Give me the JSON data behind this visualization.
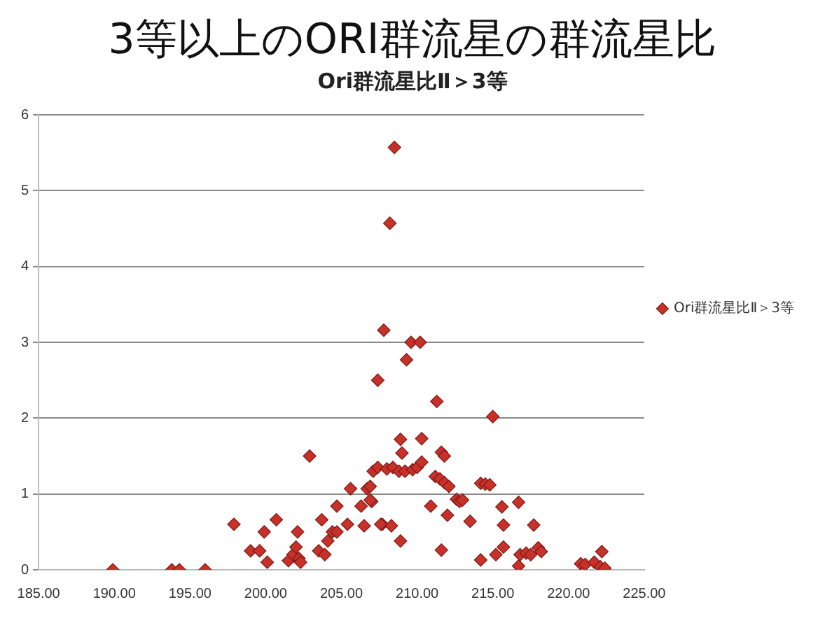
{
  "chart_data": {
    "type": "scatter",
    "title": "3等以上のORI群流星の群流星比",
    "subtitle": "Ori群流星比Ⅱ＞3等",
    "series": [
      {
        "name": "Ori群流星比Ⅱ＞3等",
        "color": "#c8302a",
        "x": [
          189.9,
          193.8,
          194.3,
          196.0,
          197.9,
          199.0,
          199.6,
          199.9,
          200.1,
          200.7,
          201.5,
          201.8,
          202.0,
          202.2,
          202.3,
          202.1,
          202.9,
          203.5,
          203.9,
          203.7,
          204.1,
          204.4,
          204.7,
          204.7,
          205.4,
          205.6,
          206.3,
          206.5,
          206.7,
          206.9,
          207.0,
          206.9,
          207.1,
          207.4,
          207.4,
          207.7,
          207.8,
          208.0,
          208.2,
          208.5,
          207.6,
          208.3,
          208.4,
          209.6,
          210.2,
          209.3,
          211.3,
          215.0,
          208.9,
          210.3,
          209.0,
          211.6,
          211.8,
          208.8,
          209.2,
          209.7,
          210.0,
          210.3,
          211.2,
          211.5,
          211.8,
          212.1,
          212.6,
          212.8,
          213.0,
          214.2,
          214.5,
          214.8,
          210.9,
          212.0,
          213.5,
          216.7,
          215.6,
          215.7,
          217.7,
          208.9,
          211.6,
          214.2,
          215.2,
          215.7,
          216.7,
          216.8,
          217.2,
          217.5,
          218.0,
          218.2,
          220.8,
          221.1,
          222.2,
          221.7,
          222.1,
          222.4
        ],
        "values": [
          0,
          0,
          0,
          0,
          0.6,
          0.25,
          0.25,
          0.5,
          0.1,
          0.66,
          0.12,
          0.2,
          0.3,
          0.15,
          0.1,
          0.5,
          1.5,
          0.25,
          0.2,
          0.66,
          0.38,
          0.5,
          0.5,
          0.84,
          0.6,
          1.07,
          0.84,
          0.58,
          1.07,
          1.1,
          0.9,
          0.92,
          1.3,
          1.35,
          2.5,
          0.6,
          3.16,
          1.33,
          4.57,
          5.57,
          0.6,
          0.58,
          1.35,
          3.0,
          3.0,
          2.77,
          2.22,
          2.02,
          1.72,
          1.73,
          1.54,
          1.55,
          1.5,
          1.3,
          1.3,
          1.32,
          1.35,
          1.42,
          1.23,
          1.2,
          1.15,
          1.1,
          0.93,
          0.9,
          0.92,
          1.14,
          1.13,
          1.12,
          0.84,
          0.72,
          0.64,
          0.89,
          0.83,
          0.59,
          0.59,
          0.38,
          0.26,
          0.13,
          0.2,
          0.3,
          0.05,
          0.2,
          0.22,
          0.2,
          0.29,
          0.24,
          0.08,
          0.07,
          0.24,
          0.1,
          0.04,
          0.02
        ]
      }
    ],
    "xlim": [
      185,
      225
    ],
    "xticks": [
      {
        "value": 185,
        "label": "185.00"
      },
      {
        "value": 190,
        "label": "190.00"
      },
      {
        "value": 195,
        "label": "195.00"
      },
      {
        "value": 200,
        "label": "200.00"
      },
      {
        "value": 205,
        "label": "205.00"
      },
      {
        "value": 210,
        "label": "210.00"
      },
      {
        "value": 215,
        "label": "215.00"
      },
      {
        "value": 220,
        "label": "220.00"
      },
      {
        "value": 225,
        "label": "225.00"
      }
    ],
    "ylim": [
      0,
      6
    ],
    "yticks": [
      0,
      1,
      2,
      3,
      4,
      5,
      6
    ],
    "grid": "y",
    "legend": "right",
    "marker": "diamond"
  }
}
